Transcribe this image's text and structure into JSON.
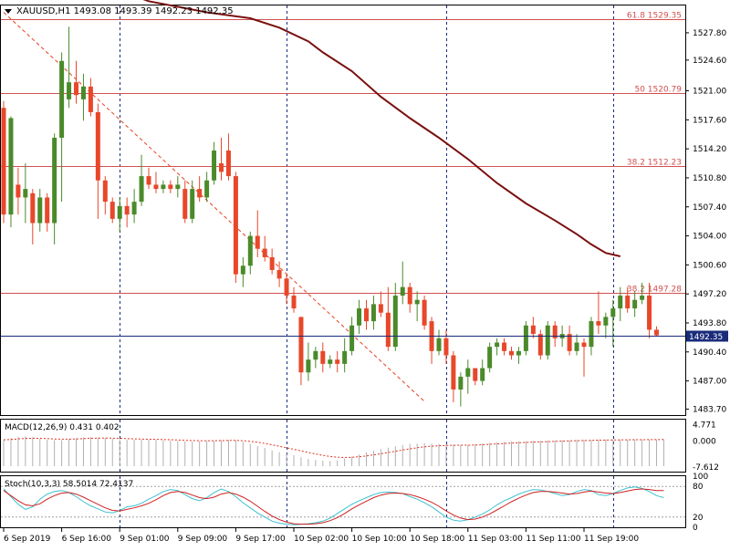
{
  "colors": {
    "background": "#ffffff",
    "frame": "#000000",
    "bull_candle": "#4a8a2a",
    "bear_candle": "#e8472a",
    "ma_line": "#7a1010",
    "fib_line": "#d25050",
    "fib_label": "#d25050",
    "trend_line": "#e84020",
    "grid_vertical": "#1a2b7a",
    "price_line": "#1a2b7a",
    "current_price_bg": "#1a2b7a",
    "macd_hist": "#b0b0b0",
    "macd_signal": "#e03020",
    "stoch_main": "#3cc0d0",
    "stoch_signal": "#d02020",
    "stoch_levels": "#a0a0a0"
  },
  "header": {
    "menu_icon": "triangle-down-icon",
    "title": "XAUUSD,H1  1493.08 1493.39 1492.23 1492.35"
  },
  "chart_data": {
    "type": "candlestick",
    "symbol": "XAUUSD",
    "timeframe": "H1",
    "ohlc_header": {
      "open": 1493.08,
      "high": 1493.39,
      "low": 1492.23,
      "close": 1492.35
    },
    "current_price": 1492.35,
    "y_ticks": [
      "1527.80",
      "1524.60",
      "1521.00",
      "1517.60",
      "1514.20",
      "1510.80",
      "1507.40",
      "1504.00",
      "1500.60",
      "1497.20",
      "1493.80",
      "1490.40",
      "1487.00",
      "1483.70"
    ],
    "y_tick_values": [
      1527.8,
      1524.6,
      1521.0,
      1517.6,
      1514.2,
      1510.8,
      1507.4,
      1504.0,
      1500.6,
      1497.2,
      1493.8,
      1490.4,
      1487.0,
      1483.7
    ],
    "ylim": [
      1483.0,
      1531.0
    ],
    "x_labels": [
      "6 Sep 2019",
      "6 Sep 16:00",
      "9 Sep 01:00",
      "9 Sep 09:00",
      "9 Sep 17:00",
      "10 Sep 02:00",
      "10 Sep 10:00",
      "10 Sep 18:00",
      "11 Sep 03:00",
      "11 Sep 11:00",
      "11 Sep 19:00"
    ],
    "x_label_index": [
      0,
      8,
      16,
      24,
      32,
      40,
      48,
      56,
      64,
      72,
      80
    ],
    "vertical_grid_index": [
      16,
      39,
      61,
      84
    ],
    "fib_levels": [
      {
        "label": "61.8",
        "price": 1529.35,
        "price_text": "1529.35"
      },
      {
        "label": "50",
        "price": 1520.79,
        "price_text": "1520.79"
      },
      {
        "label": "38.2",
        "price": 1512.23,
        "price_text": "1512.23"
      },
      {
        "label": "38.2",
        "price": 1497.28,
        "price_text": "1497.28"
      }
    ],
    "trend_line": {
      "from": [
        0,
        1530.2
      ],
      "to": [
        58,
        1484.6
      ]
    },
    "candles": [
      {
        "o": 1519.0,
        "h": 1519.8,
        "l": 1505.5,
        "c": 1506.5
      },
      {
        "o": 1506.5,
        "h": 1518.0,
        "l": 1505.0,
        "c": 1517.8
      },
      {
        "o": 1510.0,
        "h": 1512.0,
        "l": 1506.5,
        "c": 1508.5
      },
      {
        "o": 1508.5,
        "h": 1512.5,
        "l": 1505.5,
        "c": 1509.5
      },
      {
        "o": 1509.0,
        "h": 1509.5,
        "l": 1503.0,
        "c": 1505.5
      },
      {
        "o": 1505.5,
        "h": 1509.5,
        "l": 1504.5,
        "c": 1508.5
      },
      {
        "o": 1508.5,
        "h": 1509.0,
        "l": 1504.5,
        "c": 1505.5
      },
      {
        "o": 1505.5,
        "h": 1516.0,
        "l": 1503.0,
        "c": 1515.5
      },
      {
        "o": 1515.5,
        "h": 1525.5,
        "l": 1508.0,
        "c": 1524.5
      },
      {
        "o": 1520.0,
        "h": 1528.5,
        "l": 1519.0,
        "c": 1522.0
      },
      {
        "o": 1522.0,
        "h": 1524.5,
        "l": 1519.5,
        "c": 1520.5
      },
      {
        "o": 1520.0,
        "h": 1523.0,
        "l": 1517.5,
        "c": 1521.5
      },
      {
        "o": 1521.5,
        "h": 1522.5,
        "l": 1518.0,
        "c": 1518.5
      },
      {
        "o": 1518.5,
        "h": 1519.5,
        "l": 1506.0,
        "c": 1510.5
      },
      {
        "o": 1510.5,
        "h": 1511.0,
        "l": 1506.5,
        "c": 1508.0
      },
      {
        "o": 1508.0,
        "h": 1508.5,
        "l": 1505.5,
        "c": 1506.0
      },
      {
        "o": 1506.0,
        "h": 1508.5,
        "l": 1504.5,
        "c": 1507.5
      },
      {
        "o": 1507.5,
        "h": 1508.5,
        "l": 1505.0,
        "c": 1506.5
      },
      {
        "o": 1506.5,
        "h": 1509.5,
        "l": 1505.5,
        "c": 1508.0
      },
      {
        "o": 1508.0,
        "h": 1513.5,
        "l": 1507.5,
        "c": 1511.0
      },
      {
        "o": 1511.0,
        "h": 1512.0,
        "l": 1509.5,
        "c": 1510.0
      },
      {
        "o": 1510.0,
        "h": 1511.5,
        "l": 1509.0,
        "c": 1509.5
      },
      {
        "o": 1509.5,
        "h": 1510.5,
        "l": 1509.0,
        "c": 1510.0
      },
      {
        "o": 1510.0,
        "h": 1510.5,
        "l": 1509.0,
        "c": 1509.5
      },
      {
        "o": 1509.5,
        "h": 1511.0,
        "l": 1508.5,
        "c": 1510.0
      },
      {
        "o": 1509.5,
        "h": 1510.5,
        "l": 1505.5,
        "c": 1506.0
      },
      {
        "o": 1506.0,
        "h": 1510.5,
        "l": 1505.5,
        "c": 1509.5
      },
      {
        "o": 1509.5,
        "h": 1511.0,
        "l": 1508.0,
        "c": 1508.5
      },
      {
        "o": 1508.5,
        "h": 1511.5,
        "l": 1508.0,
        "c": 1510.5
      },
      {
        "o": 1510.5,
        "h": 1515.0,
        "l": 1510.0,
        "c": 1514.0
      },
      {
        "o": 1512.5,
        "h": 1515.5,
        "l": 1510.5,
        "c": 1511.5
      },
      {
        "o": 1514.0,
        "h": 1516.0,
        "l": 1510.5,
        "c": 1511.0
      },
      {
        "o": 1511.0,
        "h": 1511.5,
        "l": 1498.5,
        "c": 1499.5
      },
      {
        "o": 1499.5,
        "h": 1501.5,
        "l": 1498.0,
        "c": 1500.5
      },
      {
        "o": 1500.5,
        "h": 1504.5,
        "l": 1499.5,
        "c": 1504.0
      },
      {
        "o": 1504.0,
        "h": 1507.0,
        "l": 1501.5,
        "c": 1502.5
      },
      {
        "o": 1502.5,
        "h": 1504.0,
        "l": 1501.0,
        "c": 1501.5
      },
      {
        "o": 1501.5,
        "h": 1502.5,
        "l": 1499.5,
        "c": 1500.0
      },
      {
        "o": 1500.0,
        "h": 1501.0,
        "l": 1498.0,
        "c": 1499.0
      },
      {
        "o": 1499.0,
        "h": 1499.5,
        "l": 1496.0,
        "c": 1497.0
      },
      {
        "o": 1497.0,
        "h": 1498.0,
        "l": 1495.0,
        "c": 1495.5
      },
      {
        "o": 1494.5,
        "h": 1494.5,
        "l": 1486.5,
        "c": 1488.0
      },
      {
        "o": 1488.0,
        "h": 1491.5,
        "l": 1487.0,
        "c": 1489.5
      },
      {
        "o": 1489.5,
        "h": 1491.0,
        "l": 1488.5,
        "c": 1490.5
      },
      {
        "o": 1490.5,
        "h": 1491.5,
        "l": 1488.0,
        "c": 1489.0
      },
      {
        "o": 1489.0,
        "h": 1490.0,
        "l": 1488.5,
        "c": 1489.5
      },
      {
        "o": 1489.5,
        "h": 1490.5,
        "l": 1488.0,
        "c": 1489.0
      },
      {
        "o": 1489.0,
        "h": 1492.0,
        "l": 1488.0,
        "c": 1490.5
      },
      {
        "o": 1490.5,
        "h": 1494.5,
        "l": 1490.0,
        "c": 1493.5
      },
      {
        "o": 1493.5,
        "h": 1496.5,
        "l": 1492.5,
        "c": 1495.5
      },
      {
        "o": 1495.5,
        "h": 1496.5,
        "l": 1493.0,
        "c": 1494.0
      },
      {
        "o": 1494.0,
        "h": 1497.0,
        "l": 1493.0,
        "c": 1496.0
      },
      {
        "o": 1496.0,
        "h": 1497.5,
        "l": 1494.5,
        "c": 1495.0
      },
      {
        "o": 1495.0,
        "h": 1498.0,
        "l": 1490.5,
        "c": 1491.0
      },
      {
        "o": 1491.0,
        "h": 1498.5,
        "l": 1490.5,
        "c": 1497.0
      },
      {
        "o": 1497.0,
        "h": 1501.0,
        "l": 1496.0,
        "c": 1498.0
      },
      {
        "o": 1498.0,
        "h": 1498.5,
        "l": 1495.0,
        "c": 1496.0
      },
      {
        "o": 1496.0,
        "h": 1497.5,
        "l": 1494.0,
        "c": 1496.5
      },
      {
        "o": 1496.5,
        "h": 1497.0,
        "l": 1493.0,
        "c": 1493.5
      },
      {
        "o": 1494.0,
        "h": 1494.5,
        "l": 1489.0,
        "c": 1490.5
      },
      {
        "o": 1490.5,
        "h": 1493.0,
        "l": 1490.0,
        "c": 1492.0
      },
      {
        "o": 1492.0,
        "h": 1493.0,
        "l": 1489.0,
        "c": 1490.0
      },
      {
        "o": 1490.0,
        "h": 1490.5,
        "l": 1484.5,
        "c": 1486.0
      },
      {
        "o": 1486.0,
        "h": 1488.0,
        "l": 1484.0,
        "c": 1487.5
      },
      {
        "o": 1487.5,
        "h": 1489.5,
        "l": 1485.5,
        "c": 1488.5
      },
      {
        "o": 1488.5,
        "h": 1488.5,
        "l": 1486.5,
        "c": 1487.0
      },
      {
        "o": 1487.0,
        "h": 1489.5,
        "l": 1486.5,
        "c": 1488.5
      },
      {
        "o": 1488.5,
        "h": 1491.5,
        "l": 1488.0,
        "c": 1491.0
      },
      {
        "o": 1491.0,
        "h": 1492.0,
        "l": 1490.0,
        "c": 1491.5
      },
      {
        "o": 1491.5,
        "h": 1492.0,
        "l": 1490.0,
        "c": 1490.5
      },
      {
        "o": 1490.5,
        "h": 1491.0,
        "l": 1489.5,
        "c": 1490.0
      },
      {
        "o": 1490.0,
        "h": 1491.0,
        "l": 1489.0,
        "c": 1490.5
      },
      {
        "o": 1490.5,
        "h": 1494.0,
        "l": 1490.0,
        "c": 1493.5
      },
      {
        "o": 1493.5,
        "h": 1494.5,
        "l": 1492.0,
        "c": 1492.5
      },
      {
        "o": 1492.5,
        "h": 1493.0,
        "l": 1489.5,
        "c": 1490.0
      },
      {
        "o": 1490.0,
        "h": 1494.0,
        "l": 1489.5,
        "c": 1493.5
      },
      {
        "o": 1493.5,
        "h": 1494.0,
        "l": 1491.0,
        "c": 1492.0
      },
      {
        "o": 1492.0,
        "h": 1493.5,
        "l": 1491.0,
        "c": 1492.5
      },
      {
        "o": 1492.5,
        "h": 1493.5,
        "l": 1490.0,
        "c": 1490.5
      },
      {
        "o": 1490.5,
        "h": 1492.5,
        "l": 1490.0,
        "c": 1491.5
      },
      {
        "o": 1491.5,
        "h": 1492.0,
        "l": 1487.5,
        "c": 1491.0
      },
      {
        "o": 1491.0,
        "h": 1494.5,
        "l": 1490.0,
        "c": 1494.0
      },
      {
        "o": 1494.0,
        "h": 1497.5,
        "l": 1492.5,
        "c": 1493.5
      },
      {
        "o": 1493.5,
        "h": 1495.0,
        "l": 1492.0,
        "c": 1494.5
      },
      {
        "o": 1494.5,
        "h": 1496.5,
        "l": 1491.0,
        "c": 1495.5
      },
      {
        "o": 1495.5,
        "h": 1498.0,
        "l": 1494.0,
        "c": 1497.0
      },
      {
        "o": 1497.0,
        "h": 1498.0,
        "l": 1495.0,
        "c": 1495.5
      },
      {
        "o": 1495.5,
        "h": 1497.5,
        "l": 1494.5,
        "c": 1496.5
      },
      {
        "o": 1496.5,
        "h": 1498.5,
        "l": 1496.0,
        "c": 1497.0
      },
      {
        "o": 1497.0,
        "h": 1498.5,
        "l": 1492.0,
        "c": 1493.0
      },
      {
        "o": 1493.0,
        "h": 1493.4,
        "l": 1492.2,
        "c": 1492.35
      }
    ],
    "moving_average": [
      [
        12,
        1534.0
      ],
      [
        20,
        1531.5
      ],
      [
        28,
        1530.2
      ],
      [
        34,
        1529.5
      ],
      [
        38,
        1528.4
      ],
      [
        42,
        1526.8
      ],
      [
        44,
        1525.5
      ],
      [
        48,
        1523.3
      ],
      [
        52,
        1520.3
      ],
      [
        56,
        1517.8
      ],
      [
        60,
        1515.5
      ],
      [
        64,
        1513.0
      ],
      [
        68,
        1510.2
      ],
      [
        72,
        1507.8
      ],
      [
        76,
        1505.8
      ],
      [
        79,
        1504.2
      ],
      [
        81,
        1503.0
      ],
      [
        83,
        1502.0
      ],
      [
        85,
        1501.6
      ]
    ],
    "macd": {
      "label": "MACD(12,26,9) 0.431 0.402",
      "y_ticks": [
        "4.771",
        "0.000",
        "-7.612"
      ],
      "y_tick_values": [
        4.771,
        0.0,
        -7.612
      ],
      "ylim": [
        -9.0,
        6.2
      ],
      "histogram_seed": [
        0.3,
        0.8,
        1.2,
        1.3,
        1.0,
        0.6,
        0.3,
        0.2,
        0.2,
        0.5,
        0.8,
        1.0,
        1.1,
        1.0,
        0.9,
        0.7,
        0.5,
        0.3,
        0.3,
        0.3,
        0.3,
        0.3,
        0.2,
        0.1,
        -0.1,
        -0.2,
        -0.2,
        -0.1,
        0.0,
        0.0,
        0.2,
        0.3,
        0.2,
        -0.3,
        -0.9,
        -1.5,
        -2.1,
        -2.8,
        -3.3,
        -3.8,
        -4.2,
        -4.8,
        -5.3,
        -5.6,
        -5.8,
        -5.9,
        -5.7,
        -5.2,
        -4.6,
        -4.0,
        -3.4,
        -2.9,
        -2.4,
        -2.0,
        -1.6,
        -1.2,
        -0.9,
        -0.8,
        -0.7,
        -0.8,
        -0.9,
        -1.0,
        -1.1,
        -1.2,
        -1.2,
        -1.0,
        -0.8,
        -0.6,
        -0.4,
        -0.3,
        -0.2,
        -0.1,
        -0.1,
        0.0,
        0.0,
        0.1,
        0.1,
        0.2,
        0.2,
        0.3,
        0.3,
        0.3,
        0.4,
        0.4,
        0.4,
        0.4,
        0.4,
        0.4,
        0.4,
        0.4,
        0.4,
        0.43
      ]
    },
    "stoch": {
      "label": "Stoch(10,3,3) 58.5014 72.4137",
      "y_ticks": [
        "100",
        "80",
        "20",
        "0"
      ],
      "levels": [
        80,
        20
      ],
      "ylim": [
        0,
        100
      ],
      "main": [
        75,
        60,
        45,
        35,
        40,
        55,
        65,
        70,
        72,
        68,
        60,
        50,
        42,
        36,
        30,
        28,
        33,
        40,
        42,
        47,
        55,
        62,
        70,
        74,
        72,
        64,
        56,
        52,
        58,
        68,
        75,
        70,
        60,
        48,
        38,
        28,
        20,
        12,
        8,
        6,
        5,
        6,
        7,
        9,
        12,
        18,
        27,
        36,
        45,
        52,
        58,
        64,
        68,
        69,
        68,
        66,
        60,
        55,
        48,
        40,
        30,
        20,
        14,
        12,
        15,
        20,
        26,
        34,
        44,
        52,
        58,
        65,
        70,
        74,
        73,
        70,
        66,
        62,
        64,
        70,
        74,
        72,
        64,
        62,
        66,
        72,
        77,
        79,
        76,
        70,
        62,
        58
      ],
      "signal": [
        72,
        62,
        52,
        44,
        42,
        46,
        55,
        62,
        67,
        68,
        65,
        59,
        52,
        45,
        38,
        33,
        32,
        35,
        38,
        42,
        47,
        54,
        62,
        68,
        70,
        68,
        63,
        58,
        56,
        59,
        65,
        68,
        65,
        59,
        51,
        41,
        31,
        22,
        15,
        10,
        7,
        6,
        6,
        7,
        9,
        13,
        19,
        27,
        36,
        44,
        51,
        58,
        63,
        66,
        67,
        66,
        64,
        60,
        55,
        49,
        41,
        32,
        24,
        18,
        15,
        16,
        20,
        26,
        34,
        42,
        50,
        57,
        63,
        68,
        70,
        70,
        69,
        67,
        65,
        66,
        69,
        71,
        69,
        67,
        66,
        68,
        71,
        74,
        75,
        74,
        72,
        72
      ]
    }
  }
}
